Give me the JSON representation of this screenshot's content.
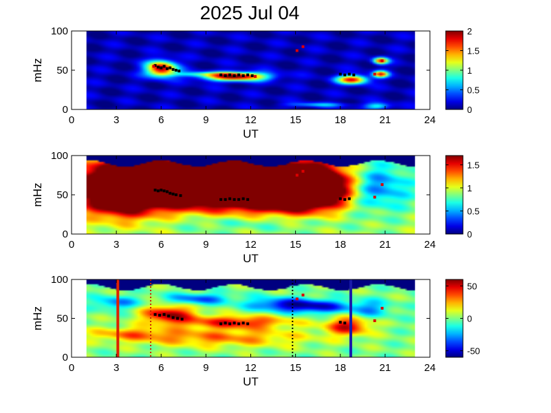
{
  "title": "2025 Jul 04",
  "chart_data": [
    {
      "type": "heatmap",
      "xlabel": "UT",
      "ylabel": "mHz",
      "xlim": [
        0,
        24
      ],
      "ylim": [
        0,
        100
      ],
      "xticks": [
        0,
        3,
        6,
        9,
        12,
        15,
        18,
        21,
        24
      ],
      "yticks": [
        0,
        50,
        100
      ],
      "data_x_range": [
        1.0,
        23.0
      ],
      "colorbar": {
        "min": 0,
        "max": 2,
        "ticks": [
          0,
          0.5,
          1,
          1.5,
          2
        ],
        "tick_labels": [
          "0",
          "0.5",
          "1",
          "1.5",
          "2"
        ]
      },
      "background_value": 0.1,
      "blobs": [
        {
          "x": 6.0,
          "y": 52,
          "sx": 0.7,
          "sy": 7,
          "v": 2.0
        },
        {
          "x": 11.0,
          "y": 42,
          "sx": 1.5,
          "sy": 4,
          "v": 2.0
        },
        {
          "x": 8.5,
          "y": 45,
          "sx": 1.5,
          "sy": 2,
          "v": 0.6
        },
        {
          "x": 18.8,
          "y": 38,
          "sx": 0.7,
          "sy": 4,
          "v": 1.8
        },
        {
          "x": 20.7,
          "y": 62,
          "sx": 0.35,
          "sy": 3,
          "v": 1.7
        },
        {
          "x": 20.7,
          "y": 45,
          "sx": 0.35,
          "sy": 3,
          "v": 1.7
        },
        {
          "x": 16.5,
          "y": 6,
          "sx": 1.5,
          "sy": 2,
          "v": 0.6
        },
        {
          "x": 20.5,
          "y": 4,
          "sx": 0.6,
          "sy": 3,
          "v": 0.8
        }
      ],
      "markers": {
        "black": [
          [
            5.6,
            56
          ],
          [
            5.8,
            54
          ],
          [
            6.0,
            53
          ],
          [
            6.2,
            55
          ],
          [
            6.4,
            52
          ],
          [
            6.6,
            53
          ],
          [
            6.8,
            51
          ],
          [
            7.0,
            50
          ],
          [
            7.2,
            49
          ],
          [
            10.0,
            44
          ],
          [
            10.3,
            43
          ],
          [
            10.6,
            44
          ],
          [
            10.9,
            43
          ],
          [
            11.2,
            44
          ],
          [
            11.5,
            43
          ],
          [
            11.8,
            44
          ],
          [
            12.1,
            43
          ],
          [
            18.0,
            45
          ],
          [
            18.3,
            44
          ],
          [
            18.6,
            45
          ],
          [
            18.9,
            44
          ]
        ],
        "red": [
          [
            5.5,
            55
          ],
          [
            15.1,
            75
          ],
          [
            15.5,
            80
          ],
          [
            20.3,
            45
          ],
          [
            20.8,
            62
          ],
          [
            12.3,
            42
          ]
        ]
      }
    },
    {
      "type": "heatmap",
      "xlabel": "UT",
      "ylabel": "mHz",
      "xlim": [
        0,
        24
      ],
      "ylim": [
        0,
        100
      ],
      "xticks": [
        0,
        3,
        6,
        9,
        12,
        15,
        18,
        21,
        24
      ],
      "yticks": [
        0,
        50,
        100
      ],
      "data_x_range": [
        1.0,
        23.0
      ],
      "colorbar": {
        "min": 0,
        "max": 1.7,
        "ticks": [
          0,
          0.5,
          1,
          1.5
        ],
        "tick_labels": [
          "0",
          "0.5",
          "1",
          "1.5"
        ]
      },
      "background_value": 0.9,
      "blobs": [
        {
          "x": 3.5,
          "y": 60,
          "sx": 2.0,
          "sy": 22,
          "v": 3.0
        },
        {
          "x": 8.0,
          "y": 65,
          "sx": 2.0,
          "sy": 18,
          "v": 3.0
        },
        {
          "x": 12.5,
          "y": 62,
          "sx": 2.5,
          "sy": 20,
          "v": 3.0
        },
        {
          "x": 16.0,
          "y": 60,
          "sx": 1.7,
          "sy": 18,
          "v": 2.8
        },
        {
          "x": 20.5,
          "y": 60,
          "sx": 1.5,
          "sy": 20,
          "v": 0.4
        },
        {
          "x": 12.0,
          "y": 15,
          "sx": 4.0,
          "sy": 8,
          "v": 0.7
        }
      ],
      "markers": {
        "black": [
          [
            5.6,
            56
          ],
          [
            5.8,
            55
          ],
          [
            6.0,
            56
          ],
          [
            6.2,
            55
          ],
          [
            6.4,
            54
          ],
          [
            6.6,
            52
          ],
          [
            6.8,
            51
          ],
          [
            7.0,
            50
          ],
          [
            7.3,
            49
          ],
          [
            10.0,
            44
          ],
          [
            10.3,
            44
          ],
          [
            10.6,
            45
          ],
          [
            10.9,
            44
          ],
          [
            11.2,
            44
          ],
          [
            11.5,
            45
          ],
          [
            11.8,
            44
          ],
          [
            18.0,
            45
          ],
          [
            18.3,
            44
          ],
          [
            18.6,
            45
          ]
        ],
        "red": [
          [
            15.1,
            75
          ],
          [
            15.5,
            80
          ],
          [
            20.3,
            47
          ],
          [
            20.8,
            63
          ]
        ]
      }
    },
    {
      "type": "heatmap",
      "xlabel": "UT",
      "ylabel": "mHz",
      "xlim": [
        0,
        24
      ],
      "ylim": [
        0,
        100
      ],
      "xticks": [
        0,
        3,
        6,
        9,
        12,
        15,
        18,
        21,
        24
      ],
      "yticks": [
        0,
        50,
        100
      ],
      "data_x_range": [
        1.0,
        23.0
      ],
      "colorbar": {
        "min": -60,
        "max": 60,
        "ticks": [
          -50,
          0,
          50
        ],
        "tick_labels": [
          "-50",
          "0",
          "50"
        ]
      },
      "background_value": 0,
      "blobs": [
        {
          "x": 6.5,
          "y": 55,
          "sx": 1.2,
          "sy": 8,
          "v": 55
        },
        {
          "x": 11.0,
          "y": 45,
          "sx": 2.5,
          "sy": 6,
          "v": 45
        },
        {
          "x": 18.5,
          "y": 40,
          "sx": 1.0,
          "sy": 8,
          "v": 50
        },
        {
          "x": 14.0,
          "y": 68,
          "sx": 1.5,
          "sy": 6,
          "v": -40
        },
        {
          "x": 16.5,
          "y": 65,
          "sx": 1.5,
          "sy": 6,
          "v": -45
        },
        {
          "x": 8.5,
          "y": 75,
          "sx": 1.5,
          "sy": 5,
          "v": -35
        },
        {
          "x": 3.0,
          "y": 70,
          "sx": 1.0,
          "sy": 6,
          "v": -30
        },
        {
          "x": 20.0,
          "y": 62,
          "sx": 1.0,
          "sy": 8,
          "v": -25
        },
        {
          "x": 10.0,
          "y": 25,
          "sx": 4.0,
          "sy": 8,
          "v": 30
        },
        {
          "x": 4.0,
          "y": 30,
          "sx": 2.0,
          "sy": 6,
          "v": 25
        }
      ],
      "vlines": [
        {
          "x": 3.1,
          "color": "#dd2200",
          "style": "solid"
        },
        {
          "x": 5.3,
          "color": "#cc2200",
          "style": "dotted"
        },
        {
          "x": 14.8,
          "color": "#000000",
          "style": "dotted"
        },
        {
          "x": 18.7,
          "color": "#1a1aaa",
          "style": "solid"
        }
      ],
      "markers": {
        "black": [
          [
            5.6,
            55
          ],
          [
            5.9,
            54
          ],
          [
            6.2,
            55
          ],
          [
            6.5,
            53
          ],
          [
            6.8,
            51
          ],
          [
            7.1,
            50
          ],
          [
            7.4,
            49
          ],
          [
            10.0,
            43
          ],
          [
            10.3,
            44
          ],
          [
            10.6,
            43
          ],
          [
            10.9,
            44
          ],
          [
            11.2,
            43
          ],
          [
            11.5,
            44
          ],
          [
            11.8,
            43
          ],
          [
            18.0,
            45
          ],
          [
            18.3,
            44
          ]
        ],
        "red": [
          [
            15.1,
            75
          ],
          [
            15.5,
            80
          ],
          [
            20.3,
            47
          ],
          [
            20.8,
            63
          ]
        ]
      }
    }
  ]
}
